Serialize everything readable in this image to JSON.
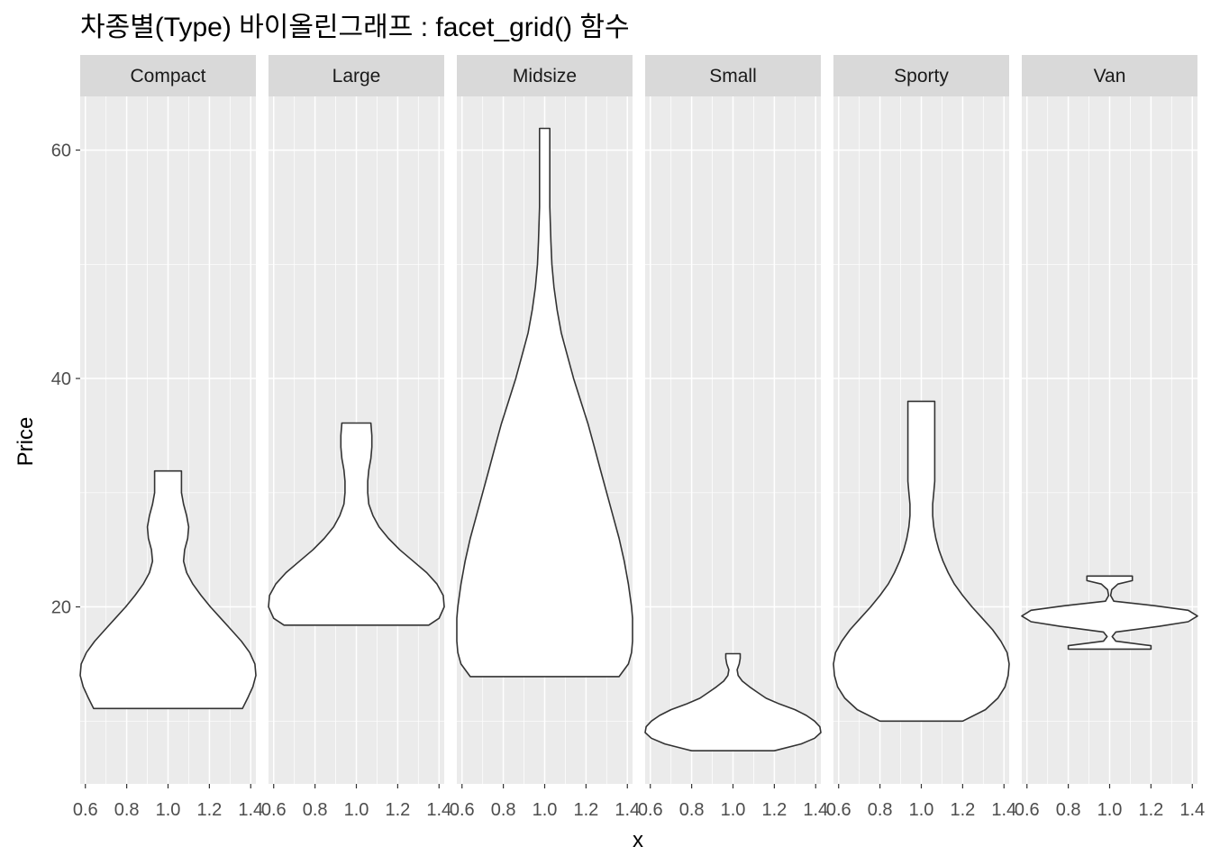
{
  "chart_data": {
    "type": "violin",
    "title": "차종별(Type) 바이올린그래프 : facet_grid() 함수",
    "xlabel": "x",
    "ylabel": "Price",
    "facet_labels": [
      "Compact",
      "Large",
      "Midsize",
      "Small",
      "Sporty",
      "Van"
    ],
    "x_ticks": [
      0.6,
      0.8,
      1.0,
      1.2,
      1.4
    ],
    "x_tick_labels": [
      "0.6",
      "0.8",
      "1.0",
      "1.2",
      "1.4"
    ],
    "xlim": [
      0.575,
      1.425
    ],
    "y_ticks": [
      20,
      40,
      60
    ],
    "y_tick_labels": [
      "20",
      "40",
      "60"
    ],
    "ylim": [
      4.5,
      64.7
    ],
    "grid": true,
    "violin_x_center": 1.0,
    "violin_max_halfwidth": 0.45,
    "panels": [
      {
        "name": "Compact",
        "ymin": 11.1,
        "ymax": 31.9,
        "profile": [
          [
            11.1,
            0.36
          ],
          [
            12,
            0.385
          ],
          [
            13,
            0.41
          ],
          [
            14,
            0.425
          ],
          [
            15,
            0.42
          ],
          [
            16,
            0.395
          ],
          [
            17,
            0.355
          ],
          [
            18,
            0.305
          ],
          [
            19,
            0.255
          ],
          [
            20,
            0.205
          ],
          [
            21,
            0.16
          ],
          [
            22,
            0.12
          ],
          [
            23,
            0.09
          ],
          [
            24,
            0.075
          ],
          [
            25,
            0.08
          ],
          [
            26,
            0.095
          ],
          [
            27,
            0.1
          ],
          [
            28,
            0.09
          ],
          [
            29,
            0.075
          ],
          [
            30,
            0.065
          ],
          [
            31,
            0.065
          ],
          [
            31.9,
            0.065
          ]
        ]
      },
      {
        "name": "Large",
        "ymin": 18.4,
        "ymax": 36.1,
        "profile": [
          [
            18.4,
            0.35
          ],
          [
            19,
            0.4
          ],
          [
            20,
            0.425
          ],
          [
            21,
            0.42
          ],
          [
            22,
            0.39
          ],
          [
            23,
            0.34
          ],
          [
            24,
            0.275
          ],
          [
            25,
            0.21
          ],
          [
            26,
            0.155
          ],
          [
            27,
            0.11
          ],
          [
            28,
            0.08
          ],
          [
            29,
            0.06
          ],
          [
            30,
            0.055
          ],
          [
            31,
            0.055
          ],
          [
            32,
            0.06
          ],
          [
            33,
            0.07
          ],
          [
            34,
            0.075
          ],
          [
            35,
            0.075
          ],
          [
            36.1,
            0.07
          ]
        ]
      },
      {
        "name": "Midsize",
        "ymin": 13.9,
        "ymax": 61.9,
        "profile": [
          [
            13.9,
            0.36
          ],
          [
            15,
            0.405
          ],
          [
            16,
            0.42
          ],
          [
            17,
            0.425
          ],
          [
            18,
            0.425
          ],
          [
            19,
            0.425
          ],
          [
            20,
            0.42
          ],
          [
            22,
            0.405
          ],
          [
            24,
            0.385
          ],
          [
            26,
            0.36
          ],
          [
            28,
            0.33
          ],
          [
            30,
            0.3
          ],
          [
            32,
            0.27
          ],
          [
            34,
            0.24
          ],
          [
            36,
            0.21
          ],
          [
            38,
            0.175
          ],
          [
            40,
            0.14
          ],
          [
            42,
            0.11
          ],
          [
            44,
            0.08
          ],
          [
            46,
            0.06
          ],
          [
            48,
            0.045
          ],
          [
            50,
            0.035
          ],
          [
            52,
            0.03
          ],
          [
            55,
            0.025
          ],
          [
            58,
            0.025
          ],
          [
            61.9,
            0.025
          ]
        ]
      },
      {
        "name": "Small",
        "ymin": 7.4,
        "ymax": 15.9,
        "profile": [
          [
            7.4,
            0.2
          ],
          [
            8,
            0.33
          ],
          [
            8.5,
            0.395
          ],
          [
            9,
            0.425
          ],
          [
            9.5,
            0.42
          ],
          [
            10,
            0.395
          ],
          [
            10.5,
            0.355
          ],
          [
            11,
            0.3
          ],
          [
            11.5,
            0.225
          ],
          [
            12,
            0.16
          ],
          [
            12.5,
            0.12
          ],
          [
            13,
            0.08
          ],
          [
            13.5,
            0.045
          ],
          [
            14,
            0.025
          ],
          [
            14.5,
            0.02
          ],
          [
            15,
            0.03
          ],
          [
            15.5,
            0.035
          ],
          [
            15.9,
            0.035
          ]
        ]
      },
      {
        "name": "Sporty",
        "ymin": 10.0,
        "ymax": 38.0,
        "profile": [
          [
            10,
            0.2
          ],
          [
            11,
            0.31
          ],
          [
            12,
            0.37
          ],
          [
            13,
            0.405
          ],
          [
            14,
            0.42
          ],
          [
            15,
            0.425
          ],
          [
            16,
            0.415
          ],
          [
            17,
            0.385
          ],
          [
            18,
            0.345
          ],
          [
            19,
            0.295
          ],
          [
            20,
            0.245
          ],
          [
            21,
            0.2
          ],
          [
            22,
            0.16
          ],
          [
            23,
            0.13
          ],
          [
            24,
            0.105
          ],
          [
            25,
            0.085
          ],
          [
            26,
            0.07
          ],
          [
            27,
            0.06
          ],
          [
            28,
            0.055
          ],
          [
            29,
            0.055
          ],
          [
            30,
            0.06
          ],
          [
            31,
            0.065
          ],
          [
            32,
            0.065
          ],
          [
            34,
            0.065
          ],
          [
            36,
            0.065
          ],
          [
            38,
            0.065
          ]
        ]
      },
      {
        "name": "Van",
        "ymin": 16.3,
        "ymax": 22.7,
        "profile": [
          [
            16.3,
            0.2
          ],
          [
            16.6,
            0.2
          ],
          [
            17,
            0.03
          ],
          [
            17.4,
            0.012
          ],
          [
            17.8,
            0.03
          ],
          [
            18.3,
            0.24
          ],
          [
            18.7,
            0.38
          ],
          [
            19.2,
            0.425
          ],
          [
            19.7,
            0.38
          ],
          [
            20.1,
            0.22
          ],
          [
            20.5,
            0.02
          ],
          [
            21,
            0.005
          ],
          [
            21.5,
            0.01
          ],
          [
            22,
            0.04
          ],
          [
            22.3,
            0.11
          ],
          [
            22.7,
            0.11
          ]
        ]
      }
    ]
  }
}
